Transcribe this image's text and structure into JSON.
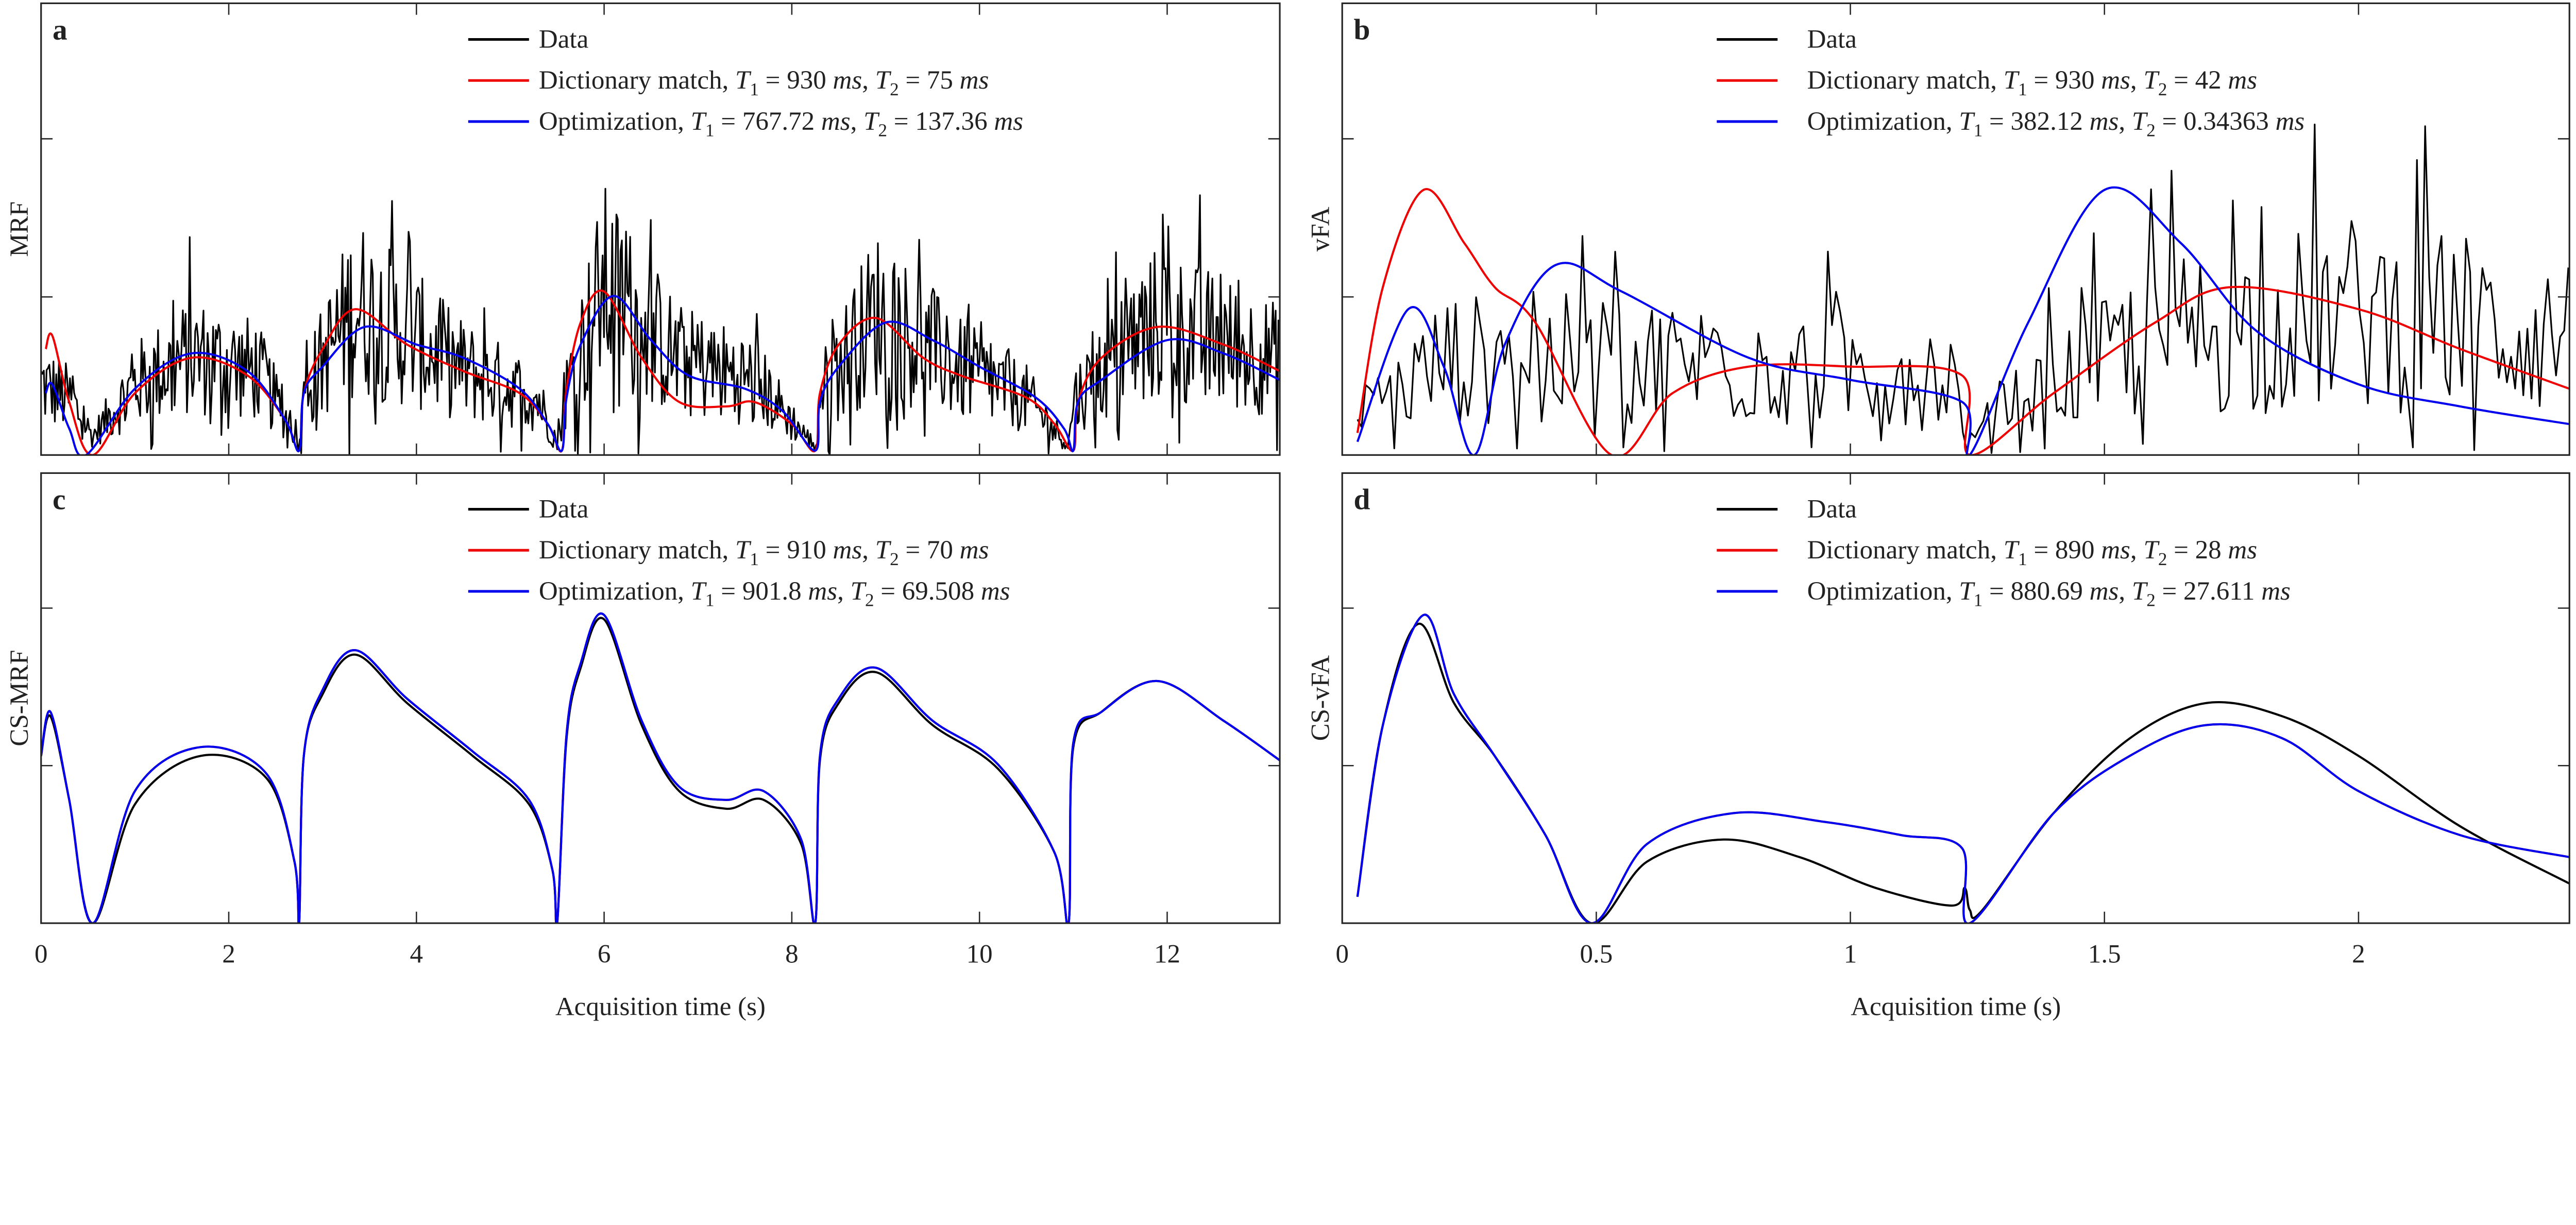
{
  "chart_data": [
    {
      "id": "a",
      "type": "line",
      "panel_label": "a",
      "ylabel": "MRF",
      "xlabel": "",
      "xlim": [
        0,
        13.2
      ],
      "ylim": [
        0,
        1
      ],
      "xticks": [
        0,
        2,
        4,
        6,
        8,
        10,
        12
      ],
      "show_tick_labels": false,
      "grid": false,
      "legend": "top-center",
      "series": [
        {
          "name": "Data",
          "color": "#000000",
          "noisy": true,
          "noise_amp": 1.3,
          "x": [
            0,
            0.3,
            0.55,
            1.0,
            1.6,
            2.3,
            2.7,
            2.75,
            2.8,
            3.35,
            4.5,
            5.3,
            5.5,
            5.6,
            6.0,
            6.8,
            7.6,
            8.2,
            8.25,
            8.3,
            8.9,
            9.8,
            10.5,
            10.95,
            11.0,
            11.9,
            13.2
          ],
          "y": [
            0.15,
            0.12,
            0.04,
            0.15,
            0.21,
            0.18,
            0.05,
            0.01,
            0.13,
            0.32,
            0.18,
            0.12,
            0.02,
            0.14,
            0.36,
            0.2,
            0.16,
            0.03,
            0.01,
            0.13,
            0.3,
            0.18,
            0.12,
            0.02,
            0.12,
            0.28,
            0.2
          ]
        },
        {
          "name": "Dictionary match",
          "t1": "930",
          "t2": "75",
          "color": "#ee0000",
          "x": [
            0.05,
            0.12,
            0.3,
            0.55,
            1.0,
            1.6,
            2.2,
            2.6,
            2.75,
            2.8,
            3.0,
            3.35,
            3.9,
            4.5,
            5.1,
            5.4,
            5.55,
            5.6,
            5.75,
            6.0,
            6.4,
            6.8,
            7.3,
            7.6,
            8.0,
            8.25,
            8.3,
            8.5,
            8.9,
            9.4,
            9.8,
            10.5,
            10.8,
            11.0,
            11.05,
            11.3,
            11.9,
            12.6,
            13.2
          ],
          "y": [
            0.24,
            0.27,
            0.12,
            0,
            0.14,
            0.22,
            0.18,
            0.08,
            0.01,
            0.14,
            0.24,
            0.33,
            0.25,
            0.19,
            0.14,
            0.07,
            0.01,
            0.15,
            0.3,
            0.37,
            0.22,
            0.12,
            0.11,
            0.12,
            0.07,
            0.01,
            0.14,
            0.25,
            0.31,
            0.22,
            0.18,
            0.13,
            0.07,
            0.01,
            0.12,
            0.22,
            0.29,
            0.25,
            0.19
          ]
        },
        {
          "name": "Optimization",
          "t1": "767.72",
          "t2": "137.36",
          "color": "#0000ee",
          "x": [
            0.05,
            0.12,
            0.3,
            0.48,
            1.0,
            1.6,
            2.2,
            2.6,
            2.75,
            2.8,
            3.0,
            3.45,
            4.0,
            4.5,
            5.1,
            5.4,
            5.55,
            5.6,
            5.75,
            6.1,
            6.5,
            6.9,
            7.5,
            7.9,
            8.25,
            8.3,
            8.5,
            9.0,
            9.5,
            10.0,
            10.6,
            10.9,
            11.0,
            11.05,
            11.3,
            12.0,
            12.6,
            13.2
          ],
          "y": [
            0.14,
            0.16,
            0.06,
            0,
            0.15,
            0.23,
            0.19,
            0.08,
            0.01,
            0.14,
            0.2,
            0.29,
            0.25,
            0.22,
            0.15,
            0.07,
            0.01,
            0.13,
            0.25,
            0.36,
            0.26,
            0.18,
            0.15,
            0.1,
            0.01,
            0.12,
            0.2,
            0.3,
            0.26,
            0.2,
            0.13,
            0.06,
            0.01,
            0.12,
            0.17,
            0.26,
            0.23,
            0.17
          ]
        }
      ]
    },
    {
      "id": "b",
      "type": "line",
      "panel_label": "b",
      "ylabel": "vFA",
      "xlabel": "",
      "xlim": [
        0,
        2.415
      ],
      "ylim": [
        0,
        1
      ],
      "xticks": [
        0,
        0.5,
        1,
        1.5,
        2
      ],
      "show_tick_labels": false,
      "grid": false,
      "legend": "top-right",
      "series": [
        {
          "name": "Data",
          "color": "#000000",
          "noisy": true,
          "noise_amp": 1.5,
          "x": [
            0.03,
            0.2,
            0.5,
            0.8,
            1.2,
            1.23,
            1.3,
            1.6,
            2.0,
            2.415
          ],
          "y": [
            0.08,
            0.2,
            0.2,
            0.19,
            0.17,
            0.02,
            0.1,
            0.25,
            0.3,
            0.25
          ]
        },
        {
          "name": "Dictionary match",
          "t1": "930",
          "t2": "42",
          "color": "#ee0000",
          "x": [
            0.03,
            0.08,
            0.16,
            0.24,
            0.3,
            0.38,
            0.53,
            0.65,
            0.8,
            1.0,
            1.22,
            1.235,
            1.4,
            1.6,
            1.75,
            2.0,
            2.2,
            2.415
          ],
          "y": [
            0.05,
            0.38,
            0.6,
            0.48,
            0.38,
            0.3,
            0,
            0.14,
            0.2,
            0.2,
            0.18,
            0,
            0.14,
            0.3,
            0.38,
            0.33,
            0.24,
            0.15
          ]
        },
        {
          "name": "Optimization",
          "t1": "382.12",
          "t2": "0.34363",
          "color": "#0000ee",
          "x": [
            0.03,
            0.13,
            0.2,
            0.26,
            0.32,
            0.42,
            0.55,
            0.8,
            1.0,
            1.22,
            1.235,
            1.35,
            1.5,
            1.65,
            1.8,
            2.0,
            2.2,
            2.415
          ],
          "y": [
            0.03,
            0.33,
            0.2,
            0,
            0.25,
            0.43,
            0.37,
            0.22,
            0.17,
            0.12,
            0,
            0.3,
            0.6,
            0.48,
            0.28,
            0.16,
            0.11,
            0.07
          ]
        }
      ]
    },
    {
      "id": "c",
      "type": "line",
      "panel_label": "c",
      "ylabel": "CS-MRF",
      "xlabel": "Acquisition time (s)",
      "xlim": [
        0,
        13.2
      ],
      "ylim": [
        0,
        1
      ],
      "xticks": [
        0,
        2,
        4,
        6,
        8,
        10,
        12
      ],
      "xticklabels": [
        "0",
        "2",
        "4",
        "6",
        "8",
        "10",
        "12"
      ],
      "grid": false,
      "legend": "top-center",
      "series": [
        {
          "name": "Data",
          "color": "#000000",
          "x": [
            0,
            0.1,
            0.3,
            0.55,
            1.0,
            1.7,
            2.4,
            2.7,
            2.75,
            2.8,
            3.0,
            3.35,
            3.9,
            4.6,
            5.2,
            5.45,
            5.5,
            5.6,
            5.75,
            6.0,
            6.4,
            6.8,
            7.3,
            7.7,
            8.1,
            8.25,
            8.3,
            8.5,
            8.9,
            9.5,
            10.2,
            10.8,
            10.95,
            11.0,
            11.3,
            11.9,
            12.6,
            13.2
          ],
          "y": [
            0.38,
            0.47,
            0.28,
            0,
            0.27,
            0.38,
            0.33,
            0.14,
            0,
            0.38,
            0.52,
            0.61,
            0.5,
            0.38,
            0.27,
            0.12,
            0,
            0.42,
            0.58,
            0.69,
            0.45,
            0.3,
            0.26,
            0.28,
            0.18,
            0,
            0.37,
            0.5,
            0.57,
            0.45,
            0.35,
            0.16,
            0,
            0.4,
            0.48,
            0.55,
            0.46,
            0.37
          ]
        },
        {
          "name": "Dictionary match",
          "t1": "910",
          "t2": "70",
          "color": "#ee0000",
          "x": [
            0,
            0.1,
            0.3,
            0.55,
            1.0,
            1.7,
            2.4,
            2.7,
            2.75,
            2.8,
            3.0,
            3.35,
            3.9,
            4.6,
            5.2,
            5.45,
            5.5,
            5.6,
            5.75,
            6.0,
            6.4,
            6.8,
            7.3,
            7.7,
            8.1,
            8.25,
            8.3,
            8.5,
            8.9,
            9.5,
            10.2,
            10.8,
            10.95,
            11.0,
            11.3,
            11.9,
            12.6,
            13.2
          ],
          "y": [
            0.38,
            0.48,
            0.28,
            0,
            0.3,
            0.4,
            0.34,
            0.14,
            0,
            0.38,
            0.53,
            0.62,
            0.51,
            0.39,
            0.28,
            0.12,
            0,
            0.43,
            0.59,
            0.7,
            0.46,
            0.31,
            0.28,
            0.3,
            0.19,
            0,
            0.38,
            0.51,
            0.58,
            0.46,
            0.36,
            0.16,
            0,
            0.41,
            0.48,
            0.55,
            0.46,
            0.37
          ]
        },
        {
          "name": "Optimization",
          "t1": "901.8",
          "t2": "69.508",
          "color": "#0000ee",
          "x": [
            0,
            0.1,
            0.3,
            0.55,
            1.0,
            1.7,
            2.4,
            2.7,
            2.75,
            2.8,
            3.0,
            3.35,
            3.9,
            4.6,
            5.2,
            5.45,
            5.5,
            5.6,
            5.75,
            6.0,
            6.4,
            6.8,
            7.3,
            7.7,
            8.1,
            8.25,
            8.3,
            8.5,
            8.9,
            9.5,
            10.2,
            10.8,
            10.95,
            11.0,
            11.3,
            11.9,
            12.6,
            13.2
          ],
          "y": [
            0.38,
            0.48,
            0.28,
            0,
            0.3,
            0.4,
            0.34,
            0.14,
            0,
            0.38,
            0.53,
            0.62,
            0.51,
            0.39,
            0.28,
            0.12,
            0,
            0.43,
            0.59,
            0.7,
            0.46,
            0.31,
            0.28,
            0.3,
            0.19,
            0,
            0.38,
            0.51,
            0.58,
            0.46,
            0.36,
            0.16,
            0,
            0.41,
            0.48,
            0.55,
            0.46,
            0.37
          ]
        }
      ]
    },
    {
      "id": "d",
      "type": "line",
      "panel_label": "d",
      "ylabel": "CS-vFA",
      "xlabel": "Acquisition time (s)",
      "xlim": [
        0,
        2.415
      ],
      "ylim": [
        0,
        1
      ],
      "xticks": [
        0,
        0.5,
        1,
        1.5,
        2
      ],
      "xticklabels": [
        "0",
        "0.5",
        "1",
        "1.5",
        "2"
      ],
      "grid": false,
      "legend": "top-right",
      "series": [
        {
          "name": "Data",
          "color": "#000000",
          "x": [
            0.03,
            0.08,
            0.15,
            0.22,
            0.3,
            0.4,
            0.49,
            0.6,
            0.75,
            0.9,
            1.05,
            1.2,
            1.225,
            1.235,
            1.26,
            1.4,
            1.55,
            1.7,
            1.85,
            2.0,
            2.2,
            2.415
          ],
          "y": [
            0.06,
            0.45,
            0.68,
            0.5,
            0.38,
            0.2,
            0,
            0.14,
            0.19,
            0.15,
            0.08,
            0.04,
            0.08,
            0.03,
            0.03,
            0.25,
            0.42,
            0.5,
            0.47,
            0.38,
            0.22,
            0.09
          ]
        },
        {
          "name": "Dictionary match",
          "t1": "890",
          "t2": "28",
          "color": "#ee0000",
          "x": [
            0.03,
            0.08,
            0.16,
            0.22,
            0.3,
            0.4,
            0.49,
            0.6,
            0.77,
            0.95,
            1.1,
            1.22,
            1.235,
            1.4,
            1.55,
            1.7,
            1.85,
            2.0,
            2.2,
            2.415
          ],
          "y": [
            0.06,
            0.45,
            0.7,
            0.52,
            0.38,
            0.2,
            0,
            0.18,
            0.25,
            0.23,
            0.2,
            0.17,
            0,
            0.25,
            0.38,
            0.45,
            0.42,
            0.3,
            0.2,
            0.15
          ]
        },
        {
          "name": "Optimization",
          "t1": "880.69",
          "t2": "27.611",
          "color": "#0000ee",
          "x": [
            0.03,
            0.08,
            0.16,
            0.22,
            0.3,
            0.4,
            0.49,
            0.6,
            0.77,
            0.95,
            1.1,
            1.22,
            1.235,
            1.4,
            1.55,
            1.7,
            1.85,
            2.0,
            2.2,
            2.415
          ],
          "y": [
            0.06,
            0.45,
            0.7,
            0.52,
            0.38,
            0.2,
            0,
            0.18,
            0.25,
            0.23,
            0.2,
            0.17,
            0,
            0.25,
            0.38,
            0.45,
            0.42,
            0.3,
            0.2,
            0.15
          ]
        }
      ]
    }
  ],
  "units": {
    "ms": "ms",
    "T": "T",
    "sub1": "1",
    "sub2": "2",
    "eq": " = "
  }
}
